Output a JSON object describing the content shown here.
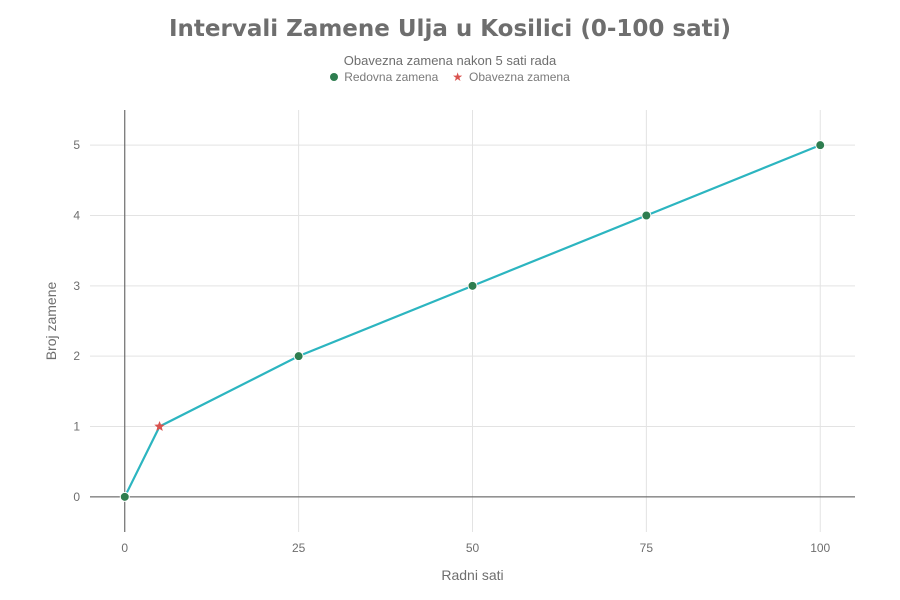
{
  "chart_data": {
    "type": "line",
    "title": "Intervali Zamene Ulja u Kosilici (0-100 sati)",
    "subtitle": "Obavezna zamena nakon 5 sati rada",
    "xlabel": "Radni sati",
    "ylabel": "Broj zamene",
    "xlim": [
      -5,
      105
    ],
    "ylim": [
      -0.5,
      5.5
    ],
    "x_ticks": [
      0,
      25,
      50,
      75,
      100
    ],
    "y_ticks": [
      0,
      1,
      2,
      3,
      4,
      5
    ],
    "grid": true,
    "legend_position": "top-center",
    "line_color": "#2cb5c0",
    "series": [
      {
        "name": "Redovna zamena",
        "marker": "circle",
        "color": "#2e7d4f",
        "x": [
          0,
          25,
          50,
          75,
          100
        ],
        "y": [
          0,
          2,
          3,
          4,
          5
        ]
      },
      {
        "name": "Obavezna zamena",
        "marker": "star",
        "color": "#d9534f",
        "x": [
          5
        ],
        "y": [
          1
        ]
      }
    ],
    "line_path": {
      "x": [
        0,
        5,
        25,
        50,
        75,
        100
      ],
      "y": [
        0,
        1,
        2,
        3,
        4,
        5
      ]
    }
  }
}
